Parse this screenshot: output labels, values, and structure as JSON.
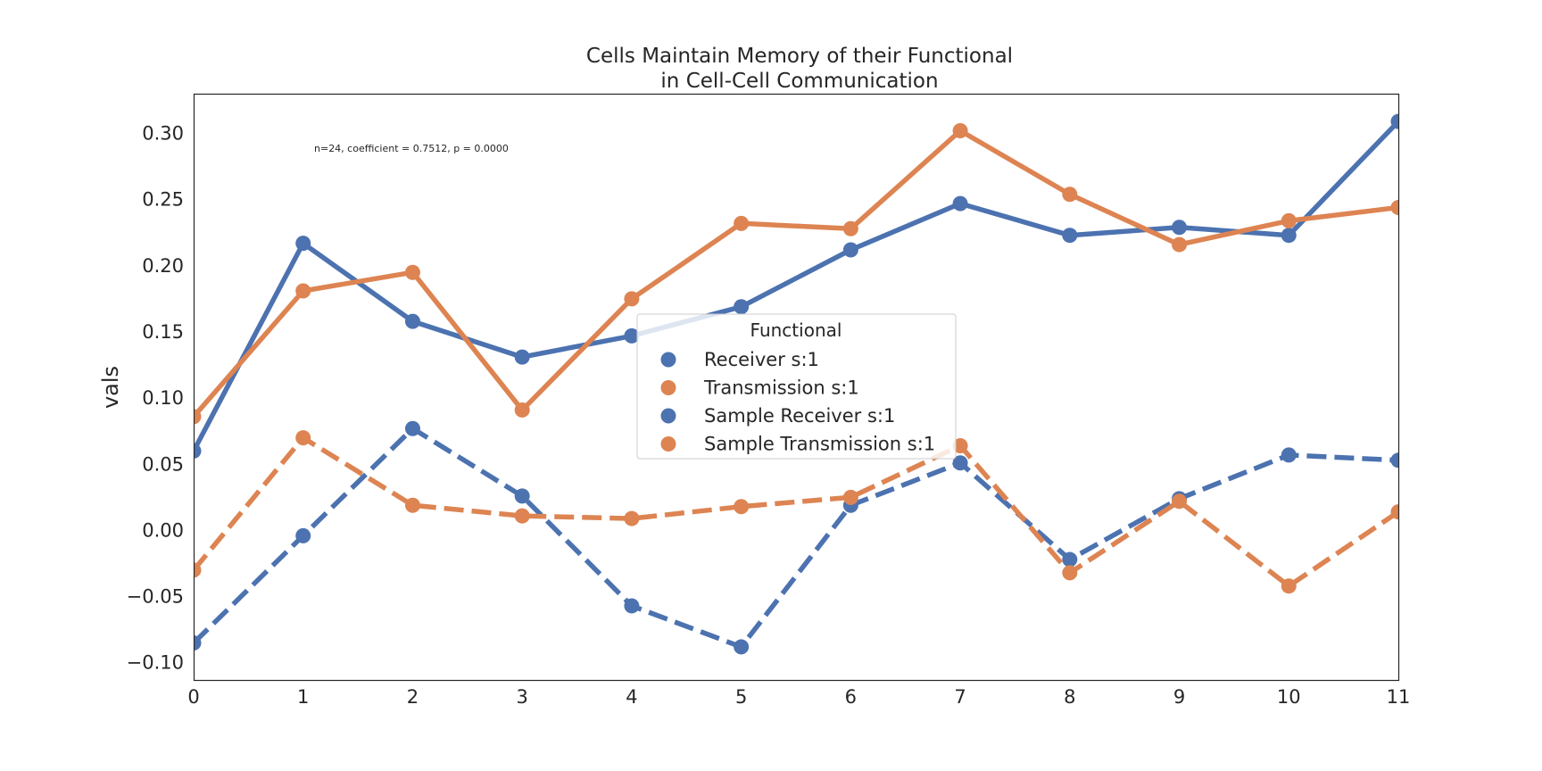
{
  "chart_data": {
    "type": "line",
    "title_lines": [
      "Cells Maintain Memory of their Functional",
      "in Cell-Cell Communication"
    ],
    "xlabel": "",
    "ylabel": "vals",
    "x": [
      0,
      1,
      2,
      3,
      4,
      5,
      6,
      7,
      8,
      9,
      10,
      11
    ],
    "xlim": [
      0,
      11
    ],
    "ylim": [
      -0.113,
      0.33
    ],
    "x_tick_labels": [
      "0",
      "1",
      "2",
      "3",
      "4",
      "5",
      "6",
      "7",
      "8",
      "9",
      "10",
      "11"
    ],
    "y_ticks": [
      -0.1,
      -0.05,
      0.0,
      0.05,
      0.1,
      0.15,
      0.2,
      0.25,
      0.3
    ],
    "y_tick_labels": [
      "−0.10",
      "−0.05",
      "0.00",
      "0.05",
      "0.10",
      "0.15",
      "0.20",
      "0.25",
      "0.30"
    ],
    "annotation": "n=24, coefficient = 0.7512, p = 0.0000",
    "grid": false,
    "legend": {
      "title": "Functional",
      "placement": "center"
    },
    "series": [
      {
        "name": "Receiver s:1",
        "color": "#4c72b0",
        "style": "solid",
        "values": [
          0.06,
          0.217,
          0.158,
          0.131,
          0.147,
          0.169,
          0.212,
          0.247,
          0.223,
          0.229,
          0.223,
          0.309
        ]
      },
      {
        "name": "Transmission s:1",
        "color": "#dd8452",
        "style": "solid",
        "values": [
          0.086,
          0.181,
          0.195,
          0.091,
          0.175,
          0.232,
          0.228,
          0.302,
          0.254,
          0.216,
          0.234,
          0.244
        ]
      },
      {
        "name": "Sample Receiver s:1",
        "color": "#4c72b0",
        "style": "dashed",
        "values": [
          -0.085,
          -0.004,
          0.077,
          0.026,
          -0.057,
          -0.088,
          0.019,
          0.051,
          -0.022,
          0.024,
          0.057,
          0.053
        ]
      },
      {
        "name": "Sample Transmission s:1",
        "color": "#dd8452",
        "style": "dashed",
        "values": [
          -0.03,
          0.07,
          0.019,
          0.011,
          0.009,
          0.018,
          0.025,
          0.064,
          -0.032,
          0.022,
          -0.042,
          0.014
        ]
      }
    ]
  }
}
